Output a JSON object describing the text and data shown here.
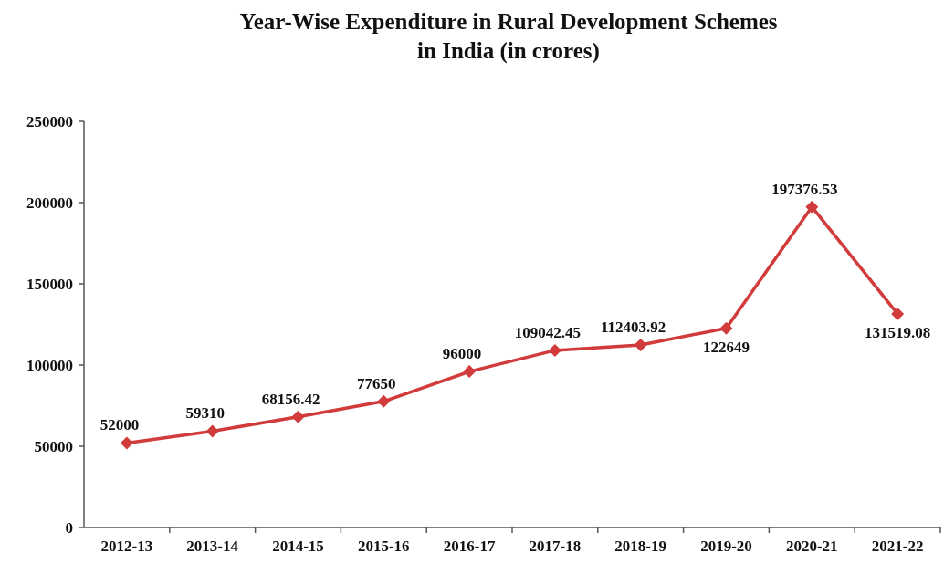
{
  "chart_data": {
    "type": "line",
    "title": "Year-Wise Expenditure in Rural Development Schemes\nin India (in crores)",
    "categories": [
      "2012-13",
      "2013-14",
      "2014-15",
      "2015-16",
      "2016-17",
      "2017-18",
      "2018-19",
      "2019-20",
      "2020-21",
      "2021-22"
    ],
    "series": [
      {
        "color": "#d13b3b",
        "values": [
          52000,
          59310,
          68156.42,
          77650,
          96000,
          109042.45,
          112403.92,
          122649,
          197376.53,
          131519.08
        ]
      }
    ],
    "ylim": [
      0,
      250000
    ],
    "yticks": [
      0,
      50000,
      100000,
      150000,
      200000,
      250000
    ],
    "grid": false,
    "marker": "diamond",
    "line_style": "solid",
    "data_labels": true
  }
}
